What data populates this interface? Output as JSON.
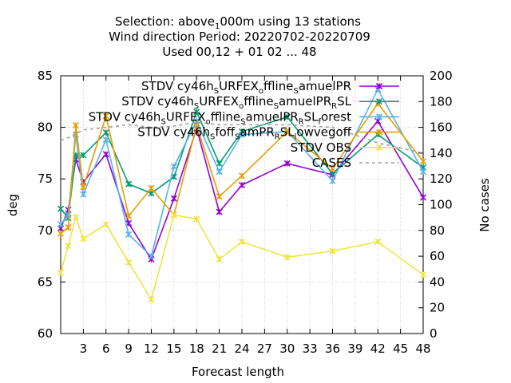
{
  "title": {
    "line1_a": "Selection: above",
    "line1_sub": "1",
    "line1_b": "000m using    13 stations",
    "line2": "Wind direction   Period: 20220702-20220709",
    "line3": "Used  00,12  + 01 02 ... 48"
  },
  "chart_data": {
    "type": "line",
    "xlabel": "Forecast length",
    "ylabel": "deg",
    "y2label": "No cases",
    "xlim": [
      0,
      48
    ],
    "ylim": [
      60,
      85
    ],
    "y2lim": [
      0,
      200
    ],
    "xticks": [
      "3",
      "6",
      "9",
      "12",
      "15",
      "18",
      "21",
      "24",
      "27",
      "30",
      "33",
      "36",
      "39",
      "42",
      "45",
      "48"
    ],
    "yticks": [
      "60",
      "65",
      "70",
      "75",
      "80",
      "85"
    ],
    "y2ticks": [
      "0",
      "20",
      "40",
      "60",
      "80",
      "100",
      "120",
      "140",
      "160",
      "180",
      "200"
    ],
    "grid": true,
    "legend_position": "top-right",
    "x": [
      0,
      1,
      2,
      3,
      6,
      9,
      12,
      15,
      18,
      21,
      24,
      30,
      36,
      42,
      48
    ],
    "series": [
      {
        "legend_parts": [
          [
            "STDV cy46h",
            ""
          ],
          [
            "S",
            "sub"
          ],
          [
            "URFEX",
            ""
          ],
          [
            "o",
            "sub"
          ],
          [
            "ffline",
            ""
          ],
          [
            "S",
            "sub"
          ],
          [
            "amuelPR",
            ""
          ]
        ],
        "axis": "y",
        "color": "#9400d3",
        "marker": "x",
        "values": [
          70.2,
          72.0,
          76.9,
          74.7,
          77.4,
          70.7,
          67.2,
          73.1,
          79.9,
          71.8,
          74.4,
          76.5,
          75.4,
          80.6,
          73.2
        ]
      },
      {
        "legend_parts": [
          [
            "STDV cy46h",
            ""
          ],
          [
            "S",
            "sub"
          ],
          [
            "URFEX",
            ""
          ],
          [
            "o",
            "sub"
          ],
          [
            "ffline",
            ""
          ],
          [
            "S",
            "sub"
          ],
          [
            "amuelPR",
            ""
          ],
          [
            "R",
            "sub"
          ],
          [
            "SL",
            ""
          ]
        ],
        "axis": "y",
        "color": "#009e73",
        "marker": "x",
        "values": [
          72.1,
          71.2,
          77.3,
          77.3,
          79.5,
          74.5,
          73.6,
          75.2,
          81.5,
          76.5,
          79.6,
          81.0,
          75.5,
          79.3,
          76.1
        ]
      },
      {
        "legend_parts": [
          [
            "STDV cy46h",
            ""
          ],
          [
            "S",
            "sub"
          ],
          [
            "URFEX",
            ""
          ],
          [
            "o",
            "sub"
          ],
          [
            "ffline",
            ""
          ],
          [
            "S",
            "sub"
          ],
          [
            "amuelPR",
            ""
          ],
          [
            "R",
            "sub"
          ],
          [
            "SL",
            ""
          ],
          [
            "f",
            "sub"
          ],
          [
            "orest",
            ""
          ]
        ],
        "axis": "y",
        "color": "#56b4e9",
        "marker": "x",
        "values": [
          70.6,
          71.5,
          79.3,
          73.5,
          78.8,
          69.6,
          67.5,
          76.2,
          80.6,
          75.7,
          79.3,
          79.6,
          74.8,
          83.7,
          75.7
        ]
      },
      {
        "legend_parts": [
          [
            "STDV cy46h",
            ""
          ],
          [
            "S",
            "sub"
          ],
          [
            "foff",
            ""
          ],
          [
            "S",
            "sub"
          ],
          [
            "amPR",
            ""
          ],
          [
            "R",
            "sub"
          ],
          [
            "SL",
            ""
          ],
          [
            "l",
            "sub"
          ],
          [
            "owvegoff",
            ""
          ]
        ],
        "axis": "y",
        "color": "#e69f00",
        "marker": "x",
        "values": [
          69.7,
          70.3,
          80.2,
          74.2,
          81.1,
          71.4,
          74.1,
          71.5,
          80.2,
          73.3,
          75.3,
          79.6,
          76.0,
          82.3,
          76.7
        ]
      },
      {
        "legend_parts": [
          [
            "STDV OBS",
            ""
          ]
        ],
        "axis": "y",
        "color": "#f0e442",
        "marker": "x",
        "values": [
          65.9,
          68.5,
          71.3,
          69.2,
          70.6,
          66.9,
          63.3,
          71.5,
          71.1,
          67.2,
          68.9,
          67.4,
          68.0,
          68.9,
          65.7
        ]
      },
      {
        "legend_parts": [
          [
            "CASES",
            ""
          ]
        ],
        "axis": "y2",
        "color": "#a0a0a0",
        "dashed": true,
        "marker": "none",
        "values": [
          150,
          152,
          155,
          158,
          160,
          162,
          160,
          161,
          164,
          162,
          162,
          162,
          160,
          148,
          140
        ]
      }
    ]
  }
}
